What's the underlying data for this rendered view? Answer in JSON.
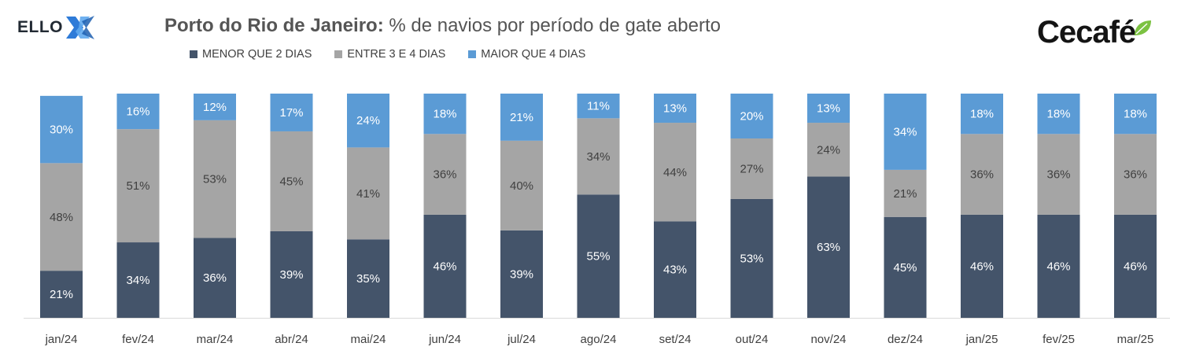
{
  "header": {
    "ello_logo_text": "ELLO",
    "title_bold": "Porto do Rio de Janeiro:",
    "title_rest": " % de navios por período de gate aberto",
    "cecafe_logo_text": "Cecafé"
  },
  "legend": [
    {
      "label": "MENOR QUE 2 DIAS",
      "color": "#44546a"
    },
    {
      "label": "ENTRE 3 E 4 DIAS",
      "color": "#a5a5a5"
    },
    {
      "label": "MAIOR QUE 4 DIAS",
      "color": "#5b9bd5"
    }
  ],
  "colors": {
    "ello_blue": "#2e7bd8",
    "cecafe_green": "#7cc242",
    "axis_line": "#d9d9d9",
    "tick_text": "#404040",
    "label_light": "#ffffff",
    "label_dark": "#404040"
  },
  "chart_data": {
    "type": "bar",
    "stacked": true,
    "ylim": [
      0,
      100
    ],
    "grid": false,
    "legend_position": "top",
    "categories": [
      "jan/24",
      "fev/24",
      "mar/24",
      "abr/24",
      "mai/24",
      "jun/24",
      "jul/24",
      "ago/24",
      "set/24",
      "out/24",
      "nov/24",
      "dez/24",
      "jan/25",
      "fev/25",
      "mar/25"
    ],
    "series": [
      {
        "name": "MENOR QUE 2 DIAS",
        "color": "#44546a",
        "values": [
          21,
          34,
          36,
          39,
          35,
          46,
          39,
          55,
          43,
          53,
          63,
          45,
          46,
          46,
          46
        ]
      },
      {
        "name": "ENTRE 3 E 4 DIAS",
        "color": "#a5a5a5",
        "values": [
          48,
          51,
          53,
          45,
          41,
          36,
          40,
          34,
          44,
          27,
          24,
          21,
          36,
          36,
          36
        ]
      },
      {
        "name": "MAIOR QUE 4 DIAS",
        "color": "#5b9bd5",
        "values": [
          30,
          16,
          12,
          17,
          24,
          18,
          21,
          11,
          13,
          20,
          13,
          34,
          18,
          18,
          18
        ]
      }
    ],
    "value_suffix": "%"
  }
}
